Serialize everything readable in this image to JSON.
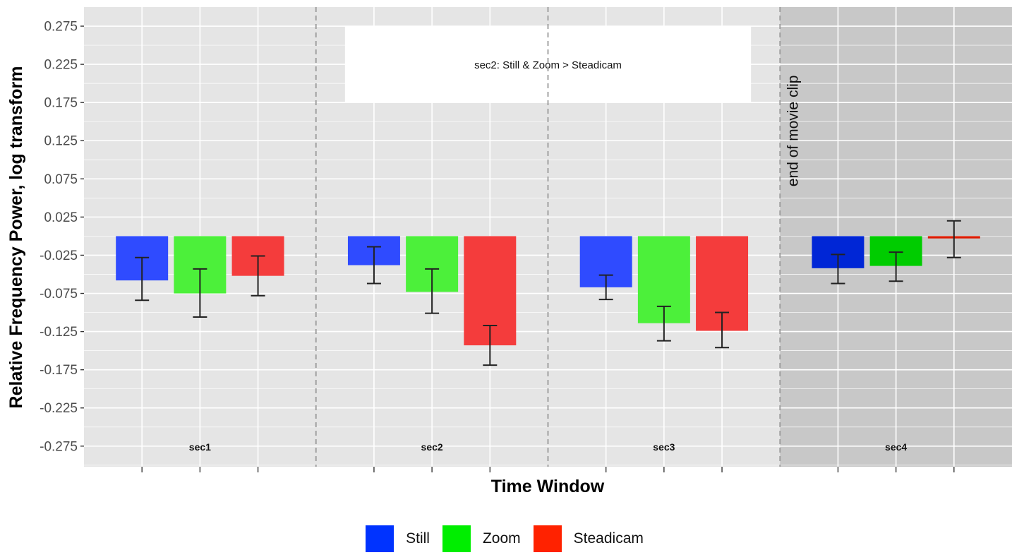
{
  "chart_data": {
    "type": "bar",
    "xlabel": "Time Window",
    "ylabel": "Relative Frequency Power, log transform",
    "ylim": [
      -0.302,
      0.3
    ],
    "yticks": [
      "0.275",
      "0.225",
      "0.175",
      "0.125",
      "0.075",
      "0.025",
      "-0.025",
      "-0.075",
      "-0.125",
      "-0.175",
      "-0.225",
      "-0.275"
    ],
    "grid": true,
    "legend_position": "bottom",
    "sections": [
      "sec1",
      "sec2",
      "sec3",
      "sec4"
    ],
    "highlighted_section": "sec4",
    "series": [
      {
        "name": "Still",
        "color": "#2f4bff",
        "highlight_color": "#0026d6",
        "values": [
          -0.058,
          -0.038,
          -0.067,
          -0.042
        ],
        "errors": [
          [
            -0.084,
            -0.028
          ],
          [
            -0.062,
            -0.014
          ],
          [
            -0.083,
            -0.051
          ],
          [
            -0.062,
            -0.024
          ]
        ]
      },
      {
        "name": "Zoom",
        "color": "#4cf03a",
        "highlight_color": "#00cc00",
        "values": [
          -0.075,
          -0.073,
          -0.114,
          -0.039
        ],
        "errors": [
          [
            -0.106,
            -0.043
          ],
          [
            -0.101,
            -0.043
          ],
          [
            -0.137,
            -0.092
          ],
          [
            -0.059,
            -0.021
          ]
        ]
      },
      {
        "name": "Steadicam",
        "color": "#f43c3c",
        "highlight_color": "#dd1c00",
        "values": [
          -0.052,
          -0.143,
          -0.124,
          -0.003
        ],
        "errors": [
          [
            -0.078,
            -0.026
          ],
          [
            -0.169,
            -0.117
          ],
          [
            -0.146,
            -0.1
          ],
          [
            -0.028,
            0.02
          ]
        ]
      }
    ],
    "annotation": {
      "text": "sec2: Still & Zoom > Steadicam",
      "ymin": 0.175,
      "ymax": 0.275
    },
    "vertical_note": "end of movie clip"
  },
  "legend": {
    "items": [
      {
        "label": "Still",
        "color": "#0033ff"
      },
      {
        "label": "Zoom",
        "color": "#00ee00"
      },
      {
        "label": "Steadicam",
        "color": "#ff2200"
      }
    ]
  }
}
